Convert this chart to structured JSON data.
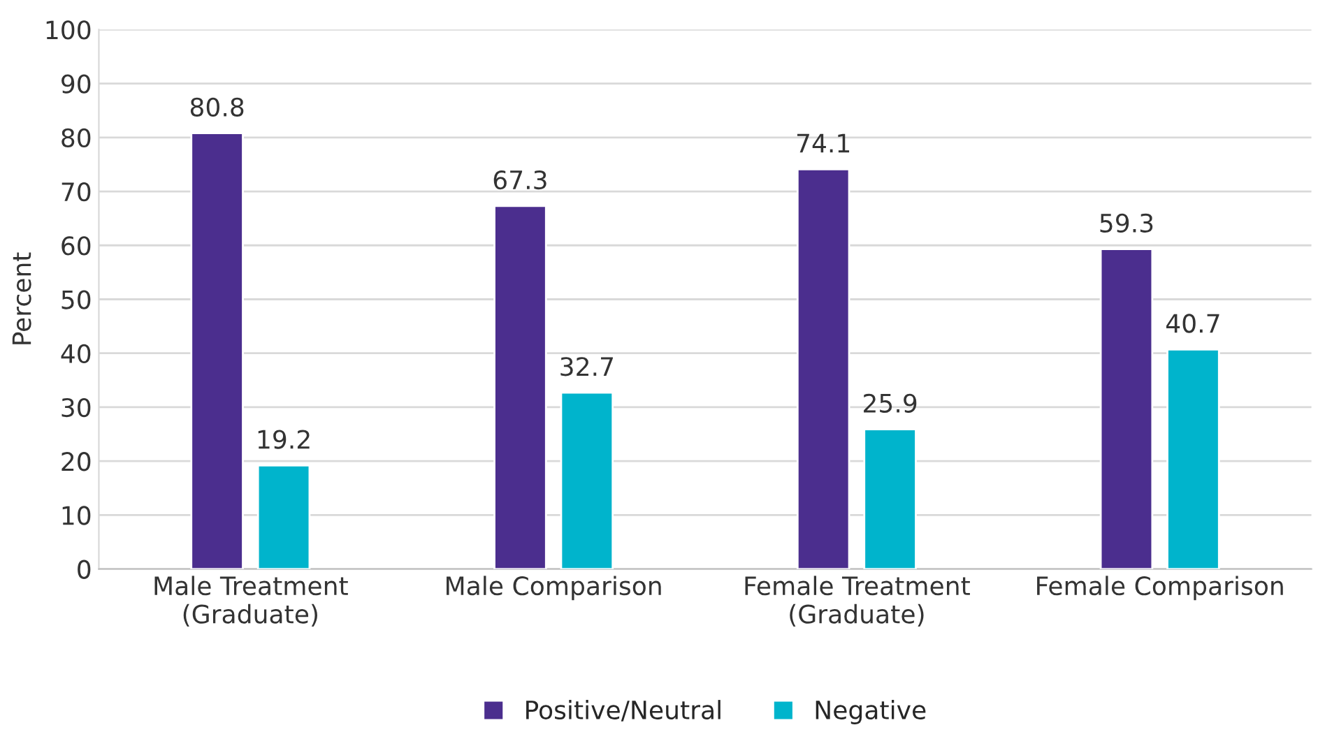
{
  "chart_data": {
    "type": "bar",
    "ylabel": "Percent",
    "categories": [
      "Male Treatment\n(Graduate)",
      "Male Comparison",
      "Female Treatment\n(Graduate)",
      "Female Comparison"
    ],
    "series": [
      {
        "name": "Positive/Neutral",
        "color": "#4b2e8e",
        "values": [
          80.8,
          67.3,
          74.1,
          59.3
        ]
      },
      {
        "name": "Negative",
        "color": "#00b4cc",
        "values": [
          19.2,
          32.7,
          25.9,
          40.7
        ]
      }
    ],
    "ylim": [
      0,
      100
    ],
    "yticks": [
      0,
      10,
      20,
      30,
      40,
      50,
      60,
      70,
      80,
      90,
      100
    ],
    "grid": "y",
    "legend": "bottom",
    "data_labels": true
  }
}
